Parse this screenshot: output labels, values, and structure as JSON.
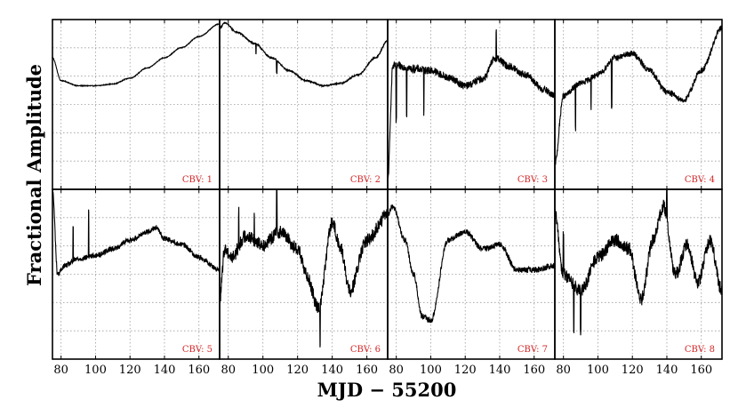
{
  "chart_data": {
    "type": "line",
    "title": "",
    "xlabel": "MJD − 55200",
    "ylabel": "Fractional Amplitude",
    "xlim": [
      75,
      172
    ],
    "x_ticks": [
      "80",
      "100",
      "120",
      "140",
      "160"
    ],
    "grid": true,
    "grid_style": "dotted",
    "layout": "2 rows x 4 columns",
    "line_color": "#000000",
    "label_color": "#d62728",
    "panels": [
      {
        "label": "CBV: 1",
        "x": [
          75,
          80,
          90,
          100,
          110,
          120,
          130,
          140,
          150,
          160,
          172
        ],
        "y": [
          0.55,
          0.28,
          0.22,
          0.22,
          0.24,
          0.31,
          0.43,
          0.55,
          0.67,
          0.8,
          0.95
        ],
        "noise": 0.004,
        "spikes": []
      },
      {
        "label": "CBV: 2",
        "x": [
          75,
          78,
          85,
          95,
          105,
          115,
          125,
          135,
          145,
          155,
          165,
          172
        ],
        "y": [
          0.9,
          0.96,
          0.85,
          0.72,
          0.55,
          0.4,
          0.28,
          0.22,
          0.25,
          0.35,
          0.55,
          0.75
        ],
        "noise": 0.008,
        "spikes": [
          {
            "x": 96,
            "dy": -0.12
          },
          {
            "x": 108,
            "dy": -0.15
          }
        ]
      },
      {
        "label": "CBV: 3",
        "x": [
          75,
          78,
          82,
          90,
          100,
          110,
          120,
          130,
          138,
          145,
          155,
          165,
          172
        ],
        "y": [
          -0.9,
          0.45,
          0.45,
          0.42,
          0.4,
          0.32,
          0.22,
          0.3,
          0.55,
          0.45,
          0.35,
          0.18,
          0.1
        ],
        "noise": 0.045,
        "spikes": [
          {
            "x": 80,
            "dy": -0.65
          },
          {
            "x": 86,
            "dy": -0.55
          },
          {
            "x": 96,
            "dy": -0.5
          },
          {
            "x": 138,
            "dy": 0.32
          }
        ]
      },
      {
        "label": "CBV: 4",
        "x": [
          75,
          80,
          90,
          100,
          110,
          120,
          130,
          140,
          150,
          160,
          172
        ],
        "y": [
          -0.7,
          0.1,
          0.25,
          0.35,
          0.55,
          0.6,
          0.4,
          0.15,
          0.05,
          0.4,
          0.9
        ],
        "noise": 0.035,
        "spikes": [
          {
            "x": 87,
            "dy": -0.5
          },
          {
            "x": 96,
            "dy": -0.35
          },
          {
            "x": 108,
            "dy": -0.55
          }
        ]
      },
      {
        "label": "CBV: 5",
        "x": [
          75,
          78,
          82,
          90,
          100,
          110,
          120,
          130,
          135,
          140,
          150,
          160,
          172
        ],
        "y": [
          1.0,
          0.0,
          0.1,
          0.18,
          0.22,
          0.3,
          0.4,
          0.5,
          0.55,
          0.42,
          0.35,
          0.2,
          0.05
        ],
        "noise": 0.03,
        "spikes": [
          {
            "x": 87,
            "dy": 0.4
          },
          {
            "x": 96,
            "dy": 0.55
          }
        ]
      },
      {
        "label": "CBV: 6",
        "x": [
          75,
          78,
          82,
          90,
          100,
          110,
          120,
          125,
          132,
          140,
          145,
          150,
          160,
          172
        ],
        "y": [
          -0.3,
          0.3,
          0.2,
          0.45,
          0.35,
          0.5,
          0.3,
          0.0,
          -0.4,
          0.6,
          0.3,
          -0.2,
          0.4,
          0.7
        ],
        "noise": 0.08,
        "spikes": [
          {
            "x": 86,
            "dy": 0.4
          },
          {
            "x": 95,
            "dy": 0.35
          },
          {
            "x": 108,
            "dy": 0.5
          },
          {
            "x": 133,
            "dy": -0.5
          }
        ]
      },
      {
        "label": "CBV: 7",
        "x": [
          75,
          78,
          85,
          90,
          95,
          100,
          110,
          120,
          130,
          140,
          150,
          160,
          172
        ],
        "y": [
          0.7,
          0.8,
          0.4,
          0.0,
          -0.5,
          -0.55,
          0.4,
          0.5,
          0.3,
          0.35,
          0.05,
          0.05,
          0.1
        ],
        "noise": 0.035,
        "spikes": []
      },
      {
        "label": "CBV: 8",
        "x": [
          75,
          80,
          90,
          100,
          110,
          118,
          125,
          132,
          138,
          145,
          152,
          158,
          165,
          172
        ],
        "y": [
          0.7,
          0.0,
          -0.2,
          0.2,
          0.4,
          0.3,
          -0.3,
          0.4,
          0.8,
          0.0,
          0.35,
          -0.1,
          0.4,
          -0.2
        ],
        "noise": 0.08,
        "spikes": [
          {
            "x": 80,
            "dy": 0.45
          },
          {
            "x": 86,
            "dy": -0.6
          },
          {
            "x": 90,
            "dy": -0.5
          },
          {
            "x": 140,
            "dy": 0.4
          }
        ]
      }
    ]
  }
}
